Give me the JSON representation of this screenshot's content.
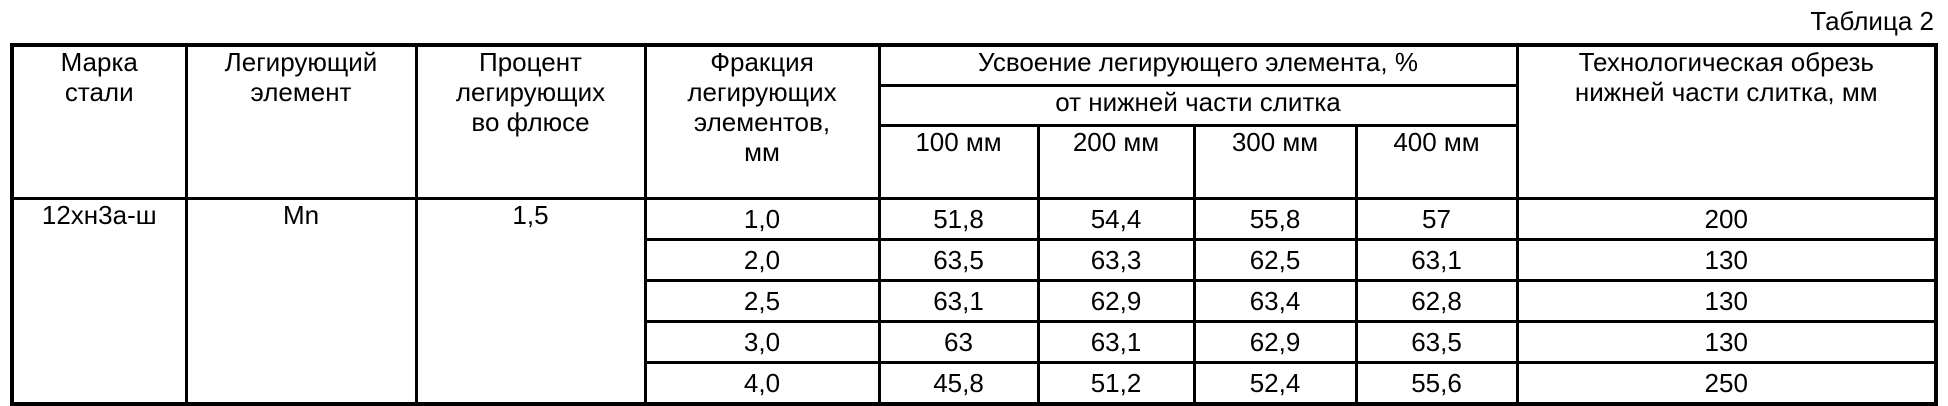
{
  "caption": "Таблица 2",
  "headers": {
    "steel_grade": [
      "Марка",
      "стали"
    ],
    "alloy_element": [
      "Легирующий",
      "элемент"
    ],
    "percent_in_flux": [
      "Процент",
      "легирующих",
      "во флюсе"
    ],
    "fraction": [
      "Фракция",
      "легирующих",
      "элементов,",
      "мм"
    ],
    "absorption": "Усвоение легирующего элемента, %",
    "absorption_sub": "от нижней части слитка",
    "distances": [
      "100 мм",
      "200 мм",
      "300 мм",
      "400 мм"
    ],
    "trim": [
      "Технологическая обрезь",
      "нижней части слитка, мм"
    ]
  },
  "group": {
    "steel_grade": "12хн3а-ш",
    "alloy_element": "Mn",
    "percent_in_flux": "1,5"
  },
  "rows": [
    {
      "fraction": "1,0",
      "values": [
        "51,8",
        "54,4",
        "55,8",
        "57"
      ],
      "trim": "200"
    },
    {
      "fraction": "2,0",
      "values": [
        "63,5",
        "63,3",
        "62,5",
        "63,1"
      ],
      "trim": "130"
    },
    {
      "fraction": "2,5",
      "values": [
        "63,1",
        "62,9",
        "63,4",
        "62,8"
      ],
      "trim": "130"
    },
    {
      "fraction": "3,0",
      "values": [
        "63",
        "63,1",
        "62,9",
        "63,5"
      ],
      "trim": "130"
    },
    {
      "fraction": "4,0",
      "values": [
        "45,8",
        "51,2",
        "52,4",
        "55,6"
      ],
      "trim": "250"
    }
  ]
}
